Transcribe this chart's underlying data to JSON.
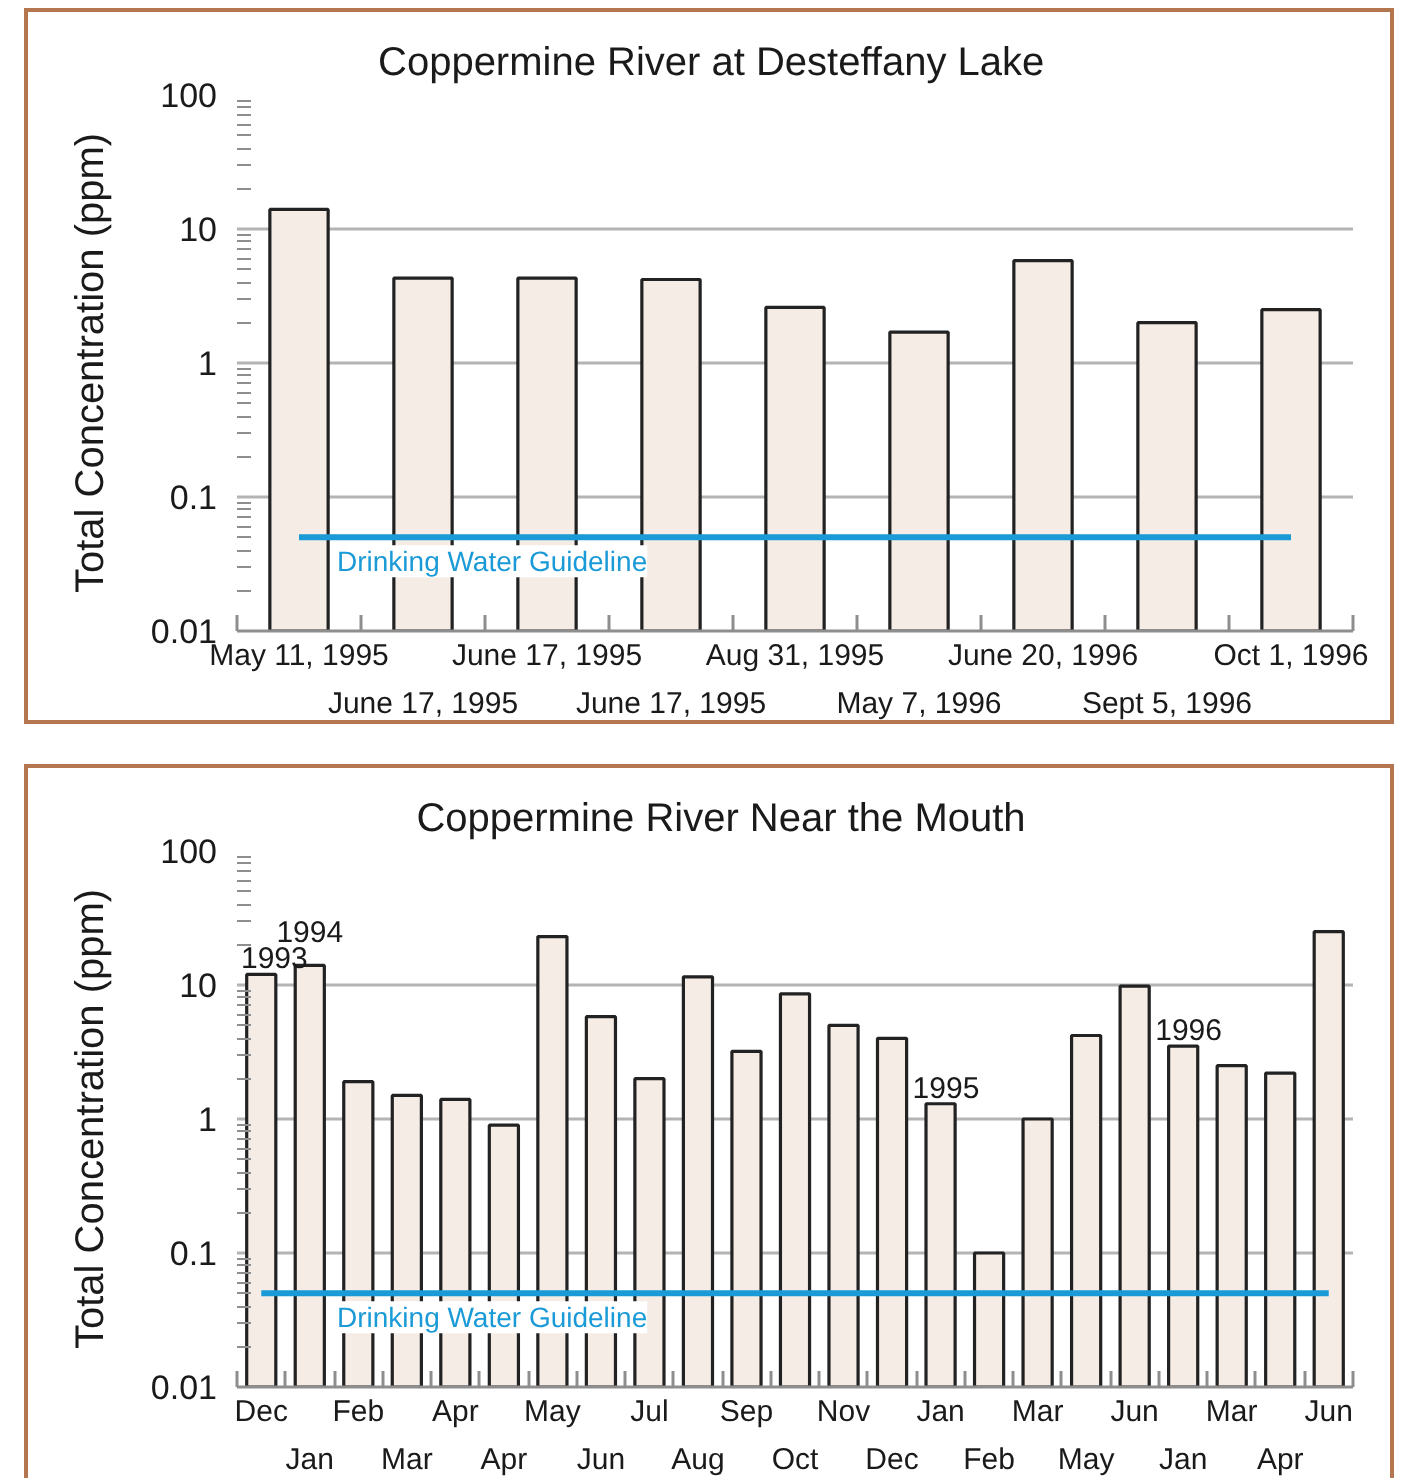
{
  "chart_data": [
    {
      "type": "bar",
      "title": "Coppermine River at Desteffany Lake",
      "ylabel": "Total Concentration (ppm)",
      "categories": [
        "May 11, 1995",
        "June 17, 1995",
        "June 17, 1995",
        "June 17, 1995",
        "Aug 31, 1995",
        "May 7, 1996",
        "June 20, 1996",
        "Sept 5, 1996",
        "Oct 1, 1996"
      ],
      "values": [
        14,
        4.3,
        4.3,
        4.2,
        2.6,
        1.7,
        5.8,
        2.0,
        2.5
      ],
      "color": "#f6ece6",
      "log": true,
      "ylim": [
        0.01,
        100
      ],
      "yticks": [
        0.01,
        0.1,
        1,
        10,
        100
      ],
      "grid": "y",
      "ref_lines": [
        {
          "axis": "y",
          "value": 0.05,
          "label": "Drinking Water Guideline",
          "color": "#1a9ad6"
        }
      ]
    },
    {
      "type": "bar",
      "title": "Coppermine River Near the Mouth",
      "ylabel": "Total Concentration (ppm)",
      "categories": [
        "Dec",
        "Jan",
        "Feb",
        "Mar",
        "Apr",
        "Apr",
        "May",
        "Jun",
        "Jul",
        "Aug",
        "Sep",
        "Oct",
        "Nov",
        "Dec",
        "Jan",
        "Feb",
        "Mar",
        "May",
        "Jun",
        "Jan",
        "Mar",
        "Apr",
        "Jun"
      ],
      "values": [
        12,
        14,
        1.9,
        1.5,
        1.4,
        0.9,
        23,
        5.8,
        2.0,
        11.5,
        3.2,
        8.6,
        5.0,
        4.0,
        1.3,
        0.1,
        1.0,
        4.2,
        9.8,
        3.5,
        2.5,
        2.2,
        25
      ],
      "color": "#f6ece6",
      "log": true,
      "ylim": [
        0.01,
        100
      ],
      "yticks": [
        0.01,
        0.1,
        1,
        10,
        100
      ],
      "grid": "y",
      "ref_lines": [
        {
          "axis": "y",
          "value": 0.05,
          "label": "Drinking Water Guideline",
          "color": "#1a9ad6"
        }
      ],
      "annotations": [
        {
          "text": "1993",
          "x": "Dec",
          "y": 12
        },
        {
          "text": "1994",
          "x": "Jan",
          "y": 14
        },
        "1995",
        "1996"
      ]
    }
  ]
}
